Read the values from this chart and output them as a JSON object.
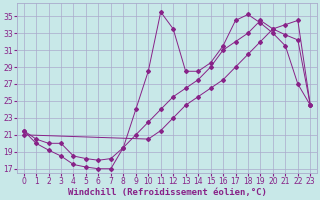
{
  "background_color": "#c8e8e8",
  "grid_color": "#aaaacc",
  "line_color": "#882288",
  "xlabel": "Windchill (Refroidissement éolien,°C)",
  "xlabel_fontsize": 6.5,
  "tick_fontsize": 5.5,
  "xlim": [
    -0.5,
    23.5
  ],
  "ylim": [
    16.5,
    36.5
  ],
  "yticks": [
    17,
    19,
    21,
    23,
    25,
    27,
    29,
    31,
    33,
    35
  ],
  "xticks": [
    0,
    1,
    2,
    3,
    4,
    5,
    6,
    7,
    8,
    9,
    10,
    11,
    12,
    13,
    14,
    15,
    16,
    17,
    18,
    19,
    20,
    21,
    22,
    23
  ],
  "line1_x": [
    0,
    1,
    2,
    3,
    4,
    5,
    6,
    7,
    8,
    9,
    10,
    11,
    12,
    13,
    14,
    15,
    16,
    17,
    18,
    19,
    20,
    21,
    22,
    23
  ],
  "line1_y": [
    21.5,
    20.0,
    19.2,
    18.5,
    17.5,
    17.2,
    17.0,
    17.0,
    19.5,
    24.0,
    28.5,
    35.5,
    33.5,
    28.5,
    28.5,
    29.5,
    31.5,
    34.5,
    35.2,
    34.2,
    33.0,
    31.5,
    27.0,
    24.5
  ],
  "line2_x": [
    0,
    1,
    2,
    3,
    4,
    5,
    6,
    7,
    8,
    9,
    10,
    11,
    12,
    13,
    14,
    15,
    16,
    17,
    18,
    19,
    20,
    21,
    22,
    23
  ],
  "line2_y": [
    21.5,
    20.5,
    20.0,
    20.0,
    18.5,
    18.2,
    18.0,
    18.2,
    19.5,
    21.0,
    22.5,
    24.0,
    25.5,
    26.5,
    27.5,
    29.0,
    31.0,
    32.0,
    33.0,
    34.5,
    33.5,
    32.8,
    32.2,
    24.5
  ],
  "line3_x": [
    0,
    10,
    11,
    12,
    13,
    14,
    15,
    16,
    17,
    18,
    19,
    20,
    21,
    22,
    23
  ],
  "line3_y": [
    21.0,
    20.5,
    21.5,
    23.0,
    24.5,
    25.5,
    26.5,
    27.5,
    29.0,
    30.5,
    32.0,
    33.5,
    34.0,
    34.5,
    24.5
  ]
}
